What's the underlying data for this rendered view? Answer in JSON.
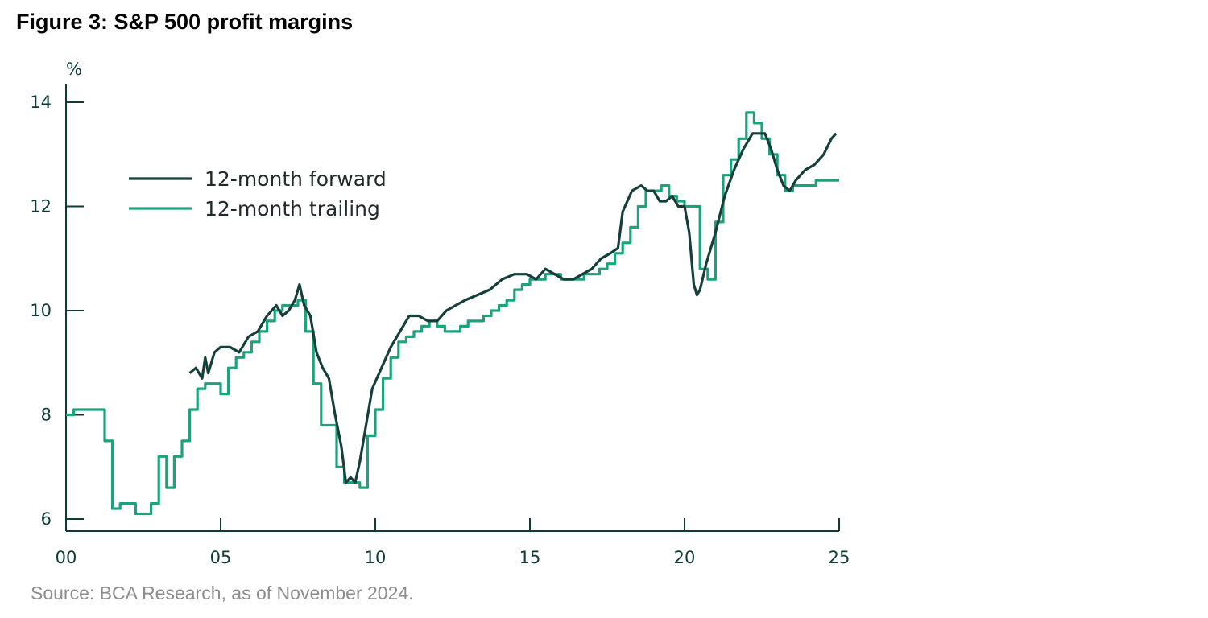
{
  "title": "Figure 3: S&P 500 profit margins",
  "source": "Source: BCA Research, as of November 2024.",
  "chart_data": {
    "type": "line",
    "ylabel": "%",
    "xlabel": "",
    "xlim": [
      2000,
      2025
    ],
    "ylim": [
      6,
      14
    ],
    "x_ticks": [
      2000,
      2005,
      2010,
      2015,
      2020,
      2025
    ],
    "x_tick_labels": [
      "00",
      "05",
      "10",
      "15",
      "20",
      "25"
    ],
    "y_ticks": [
      6,
      8,
      10,
      12,
      14
    ],
    "y_tick_labels": [
      "6",
      "8",
      "10",
      "12",
      "14"
    ],
    "legend_position": "upper-left",
    "series": [
      {
        "name": "12-month forward",
        "color": "#153f3b",
        "style": "line",
        "x": [
          2004.0,
          2004.2,
          2004.4,
          2004.5,
          2004.6,
          2004.8,
          2005.0,
          2005.3,
          2005.6,
          2005.9,
          2006.2,
          2006.5,
          2006.8,
          2007.0,
          2007.2,
          2007.4,
          2007.55,
          2007.7,
          2007.9,
          2008.1,
          2008.3,
          2008.5,
          2008.7,
          2008.9,
          2009.05,
          2009.2,
          2009.35,
          2009.5,
          2009.7,
          2009.9,
          2010.2,
          2010.5,
          2010.8,
          2011.1,
          2011.4,
          2011.7,
          2012.0,
          2012.3,
          2012.6,
          2012.9,
          2013.3,
          2013.7,
          2014.1,
          2014.5,
          2014.9,
          2015.2,
          2015.5,
          2015.8,
          2016.1,
          2016.4,
          2016.7,
          2017.0,
          2017.3,
          2017.6,
          2017.85,
          2018.0,
          2018.3,
          2018.6,
          2018.8,
          2019.0,
          2019.2,
          2019.4,
          2019.6,
          2019.8,
          2020.0,
          2020.15,
          2020.3,
          2020.4,
          2020.5,
          2020.7,
          2021.0,
          2021.3,
          2021.6,
          2021.9,
          2022.2,
          2022.4,
          2022.6,
          2022.8,
          2023.0,
          2023.2,
          2023.4,
          2023.6,
          2023.9,
          2024.2,
          2024.5,
          2024.75,
          2024.9
        ],
        "y": [
          8.8,
          8.9,
          8.7,
          9.1,
          8.8,
          9.2,
          9.3,
          9.3,
          9.2,
          9.5,
          9.6,
          9.9,
          10.1,
          9.9,
          10.0,
          10.2,
          10.5,
          10.1,
          9.9,
          9.2,
          8.9,
          8.7,
          8.0,
          7.4,
          6.7,
          6.8,
          6.7,
          7.1,
          7.8,
          8.5,
          8.9,
          9.3,
          9.6,
          9.9,
          9.9,
          9.8,
          9.8,
          10.0,
          10.1,
          10.2,
          10.3,
          10.4,
          10.6,
          10.7,
          10.7,
          10.6,
          10.8,
          10.7,
          10.6,
          10.6,
          10.7,
          10.8,
          11.0,
          11.1,
          11.2,
          11.9,
          12.3,
          12.4,
          12.3,
          12.3,
          12.1,
          12.1,
          12.2,
          12.0,
          12.0,
          11.5,
          10.5,
          10.3,
          10.4,
          10.9,
          11.5,
          12.2,
          12.7,
          13.1,
          13.4,
          13.4,
          13.4,
          13.1,
          12.7,
          12.4,
          12.3,
          12.5,
          12.7,
          12.8,
          13.0,
          13.3,
          13.4
        ]
      },
      {
        "name": "12-month trailing",
        "color": "#1aa37d",
        "style": "step",
        "x": [
          2000.0,
          2000.25,
          2000.5,
          2000.75,
          2001.0,
          2001.25,
          2001.5,
          2001.75,
          2002.0,
          2002.25,
          2002.5,
          2002.75,
          2003.0,
          2003.25,
          2003.5,
          2003.75,
          2004.0,
          2004.25,
          2004.5,
          2004.75,
          2005.0,
          2005.25,
          2005.5,
          2005.75,
          2006.0,
          2006.25,
          2006.5,
          2006.75,
          2007.0,
          2007.25,
          2007.5,
          2007.75,
          2008.0,
          2008.25,
          2008.5,
          2008.75,
          2009.0,
          2009.25,
          2009.5,
          2009.75,
          2010.0,
          2010.25,
          2010.5,
          2010.75,
          2011.0,
          2011.25,
          2011.5,
          2011.75,
          2012.0,
          2012.25,
          2012.5,
          2012.75,
          2013.0,
          2013.25,
          2013.5,
          2013.75,
          2014.0,
          2014.25,
          2014.5,
          2014.75,
          2015.0,
          2015.25,
          2015.5,
          2015.75,
          2016.0,
          2016.25,
          2016.5,
          2016.75,
          2017.0,
          2017.25,
          2017.5,
          2017.75,
          2018.0,
          2018.25,
          2018.5,
          2018.75,
          2019.0,
          2019.25,
          2019.5,
          2019.75,
          2020.0,
          2020.25,
          2020.5,
          2020.75,
          2021.0,
          2021.25,
          2021.5,
          2021.75,
          2022.0,
          2022.25,
          2022.5,
          2022.75,
          2023.0,
          2023.25,
          2023.5,
          2023.75,
          2024.0,
          2024.25,
          2024.5,
          2024.75
        ],
        "y": [
          8.0,
          8.1,
          8.1,
          8.1,
          8.1,
          7.5,
          6.2,
          6.3,
          6.3,
          6.1,
          6.1,
          6.3,
          7.2,
          6.6,
          7.2,
          7.5,
          8.1,
          8.5,
          8.6,
          8.6,
          8.4,
          8.9,
          9.1,
          9.2,
          9.4,
          9.6,
          9.8,
          10.0,
          10.1,
          10.1,
          10.2,
          9.6,
          8.6,
          7.8,
          7.8,
          7.0,
          6.7,
          6.7,
          6.6,
          7.6,
          8.1,
          8.7,
          9.1,
          9.4,
          9.5,
          9.6,
          9.7,
          9.8,
          9.7,
          9.6,
          9.6,
          9.7,
          9.8,
          9.8,
          9.9,
          10.0,
          10.1,
          10.2,
          10.4,
          10.5,
          10.6,
          10.6,
          10.7,
          10.7,
          10.6,
          10.6,
          10.6,
          10.7,
          10.7,
          10.8,
          10.9,
          11.1,
          11.3,
          11.6,
          12.0,
          12.3,
          12.3,
          12.4,
          12.2,
          12.1,
          12.0,
          12.0,
          10.8,
          10.6,
          11.7,
          12.6,
          12.9,
          13.3,
          13.8,
          13.6,
          13.3,
          13.0,
          12.6,
          12.3,
          12.4,
          12.4,
          12.4,
          12.5,
          12.5,
          12.5
        ]
      }
    ]
  }
}
